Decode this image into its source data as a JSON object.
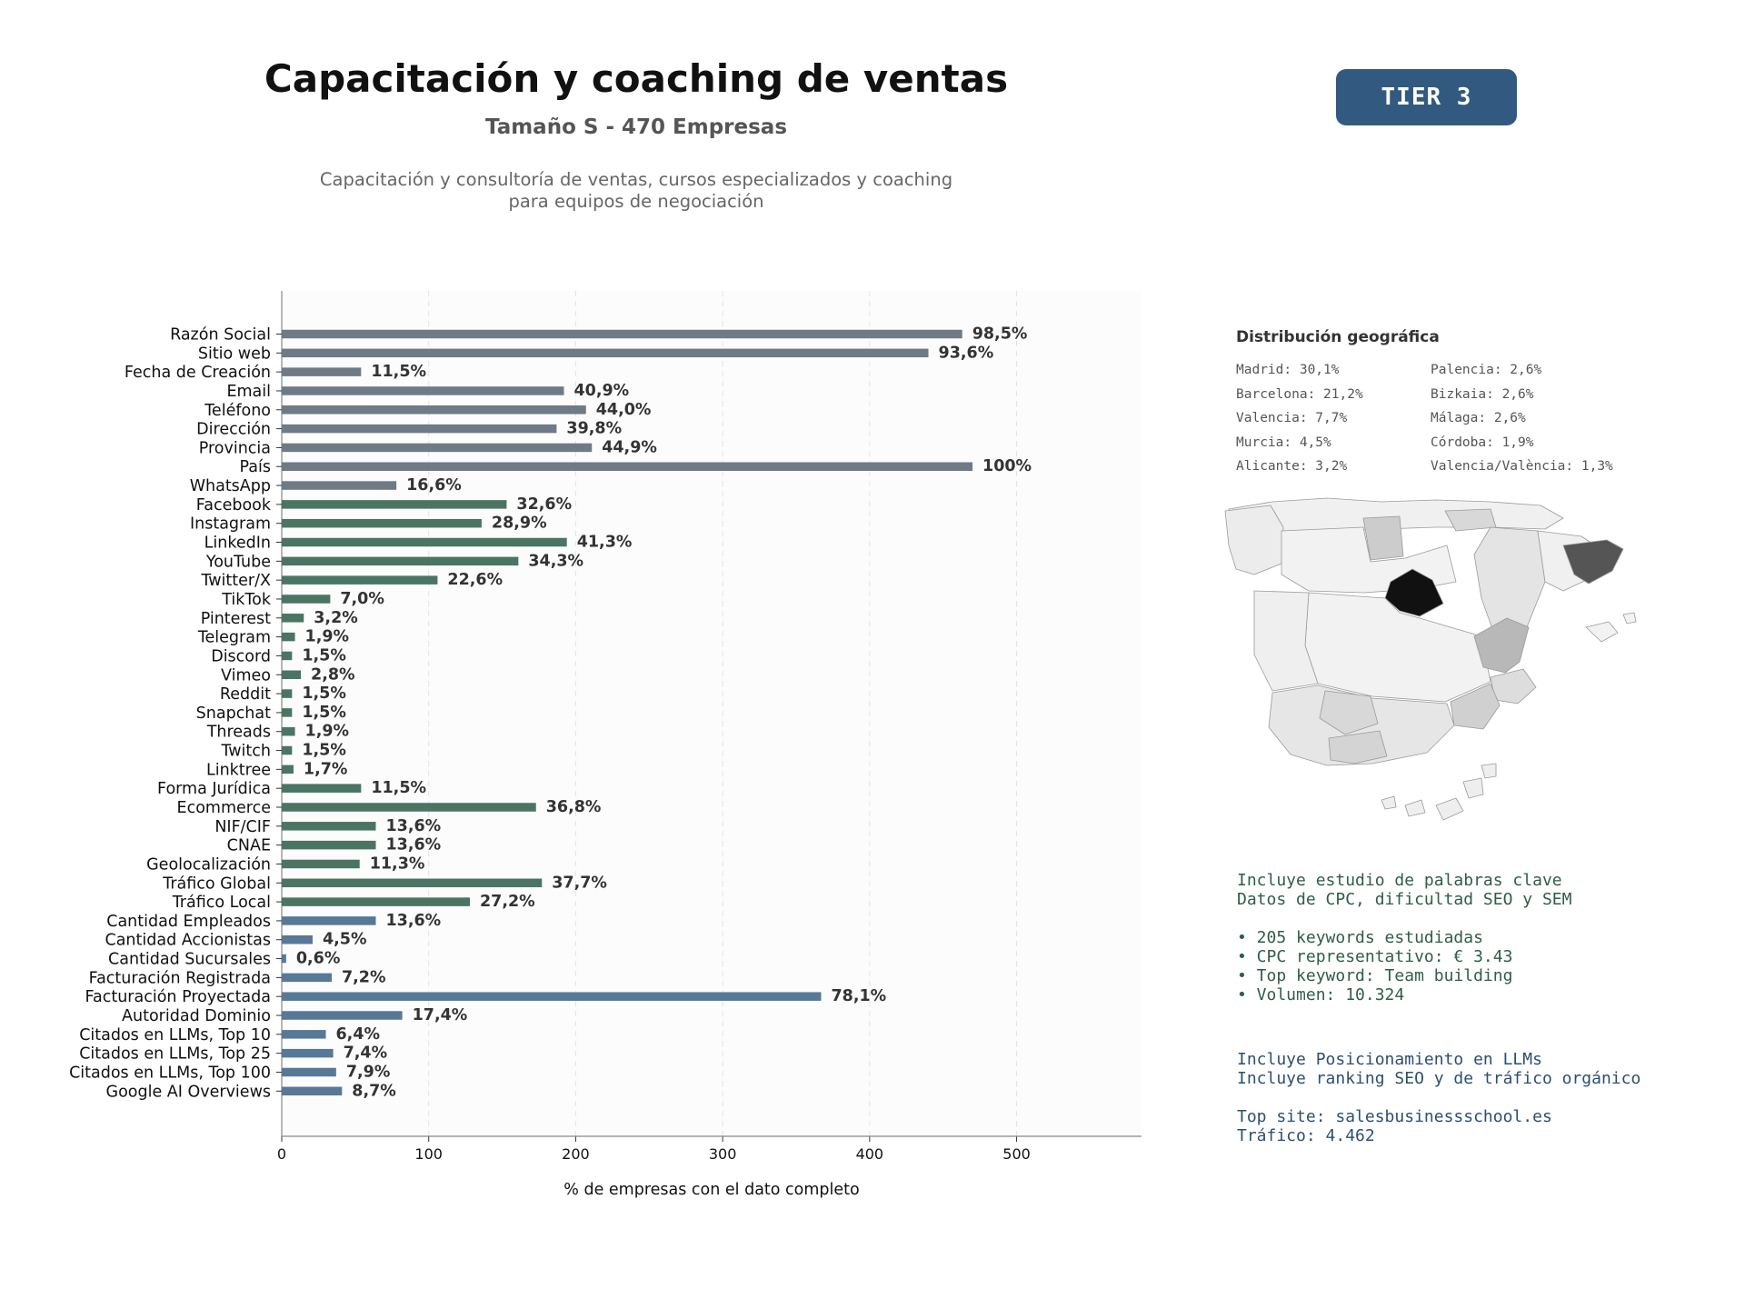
{
  "header": {
    "title": "Capacitación y coaching de ventas",
    "subtitle": "Tamaño S - 470 Empresas",
    "description_line1": "Capacitación y consultoría de ventas, cursos especializados y coaching",
    "description_line2": "para equipos de negociación",
    "tier": "TIER 3"
  },
  "geo": {
    "title": "Distribución geográfica",
    "items": [
      "Madrid: 30,1%",
      "Palencia: 2,6%",
      "Barcelona: 21,2%",
      "Bizkaia: 2,6%",
      "Valencia: 7,7%",
      "Málaga: 2,6%",
      "Murcia: 4,5%",
      "Córdoba: 1,9%",
      "Alicante: 3,2%",
      "Valencia/València: 1,3%"
    ]
  },
  "keywords_box": {
    "line1": "Incluye estudio de palabras clave",
    "line2": "Datos de CPC, dificultad SEO y SEM",
    "bullet1": "• 205 keywords estudiadas",
    "bullet2": "• CPC representativo: € 3.43",
    "bullet3": "• Top keyword: Team building",
    "bullet4": "• Volumen: 10.324"
  },
  "llm_box": {
    "line1": "Incluye Posicionamiento en LLMs",
    "line2": "Incluye ranking SEO y de tráfico orgánico",
    "line3": "Top site: salesbusinessschool.es",
    "line4": "Tráfico: 4.462"
  },
  "colors": {
    "group_basic": "#6e7a86",
    "group_social": "#4a7562",
    "group_business": "#587897",
    "badge": "#325a80"
  },
  "chart_data": {
    "type": "bar",
    "orientation": "horizontal",
    "xlabel": "% de empresas con el dato completo",
    "xlim": [
      0,
      585
    ],
    "xticks": [
      0,
      100,
      200,
      300,
      400,
      500
    ],
    "grid": "vertical dashed",
    "categories": [
      "Razón Social",
      "Sitio web",
      "Fecha de Creación",
      "Email",
      "Teléfono",
      "Dirección",
      "Provincia",
      "País",
      "WhatsApp",
      "Facebook",
      "Instagram",
      "LinkedIn",
      "YouTube",
      "Twitter/X",
      "TikTok",
      "Pinterest",
      "Telegram",
      "Discord",
      "Vimeo",
      "Reddit",
      "Snapchat",
      "Threads",
      "Twitch",
      "Linktree",
      "Forma Jurídica",
      "Ecommerce",
      "NIF/CIF",
      "CNAE",
      "Geolocalización",
      "Tráfico Global",
      "Tráfico Local",
      "Cantidad Empleados",
      "Cantidad Accionistas",
      "Cantidad Sucursales",
      "Facturación Registrada",
      "Facturación Proyectada",
      "Autoridad Dominio",
      "Citados en LLMs, Top 10",
      "Citados en LLMs, Top 25",
      "Citados en LLMs, Top 100",
      "Google AI Overviews"
    ],
    "values": [
      463,
      440,
      54,
      192,
      207,
      187,
      211,
      470,
      78,
      153,
      136,
      194,
      161,
      106,
      33,
      15,
      9,
      7,
      13,
      7,
      7,
      9,
      7,
      8,
      54,
      173,
      64,
      64,
      53,
      177,
      128,
      64,
      21,
      3,
      34,
      367,
      82,
      30,
      35,
      37,
      41
    ],
    "labels": [
      "98,5%",
      "93,6%",
      "11,5%",
      "40,9%",
      "44,0%",
      "39,8%",
      "44,9%",
      "100%",
      "16,6%",
      "32,6%",
      "28,9%",
      "41,3%",
      "34,3%",
      "22,6%",
      "7,0%",
      "3,2%",
      "1,9%",
      "1,5%",
      "2,8%",
      "1,5%",
      "1,5%",
      "1,9%",
      "1,5%",
      "1,7%",
      "11,5%",
      "36,8%",
      "13,6%",
      "13,6%",
      "11,3%",
      "37,7%",
      "27,2%",
      "13,6%",
      "4,5%",
      "0,6%",
      "7,2%",
      "78,1%",
      "17,4%",
      "6,4%",
      "7,4%",
      "7,9%",
      "8,7%"
    ],
    "groups": [
      "basic",
      "basic",
      "basic",
      "basic",
      "basic",
      "basic",
      "basic",
      "basic",
      "basic",
      "social",
      "social",
      "social",
      "social",
      "social",
      "social",
      "social",
      "social",
      "social",
      "social",
      "social",
      "social",
      "social",
      "social",
      "social",
      "social",
      "social",
      "social",
      "social",
      "social",
      "social",
      "social",
      "business",
      "business",
      "business",
      "business",
      "business",
      "business",
      "business",
      "business",
      "business",
      "business"
    ]
  }
}
